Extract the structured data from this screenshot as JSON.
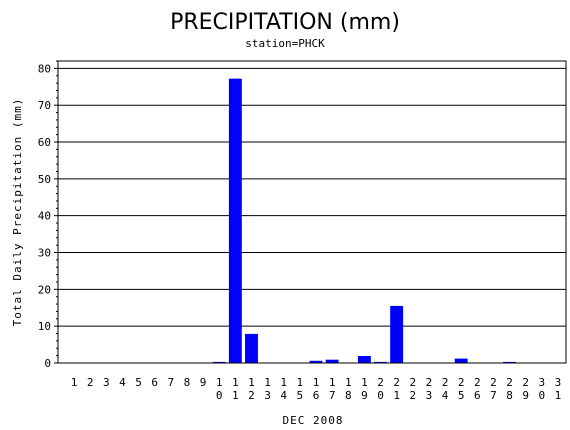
{
  "chart_data": {
    "type": "bar",
    "title": "PRECIPITATION (mm)",
    "subtitle": "station=PHCK",
    "xlabel": "DEC 2008",
    "ylabel": "Total Daily Precipitation (mm)",
    "ylim": [
      0,
      82
    ],
    "yticks": [
      0,
      10,
      20,
      30,
      40,
      50,
      60,
      70,
      80
    ],
    "grid": true,
    "bar_color": "#0000ff",
    "categories": [
      "1",
      "2",
      "3",
      "4",
      "5",
      "6",
      "7",
      "8",
      "9",
      "10",
      "11",
      "12",
      "13",
      "14",
      "15",
      "16",
      "17",
      "18",
      "19",
      "20",
      "21",
      "22",
      "23",
      "24",
      "25",
      "26",
      "27",
      "28",
      "29",
      "30",
      "31"
    ],
    "values": [
      0,
      0,
      0,
      0,
      0,
      0,
      0,
      0,
      0,
      0.3,
      77.2,
      7.9,
      0,
      0,
      0,
      0.6,
      0.9,
      0,
      1.9,
      0.3,
      15.5,
      0,
      0,
      0,
      1.2,
      0,
      0,
      0.3,
      0,
      0,
      0
    ]
  }
}
